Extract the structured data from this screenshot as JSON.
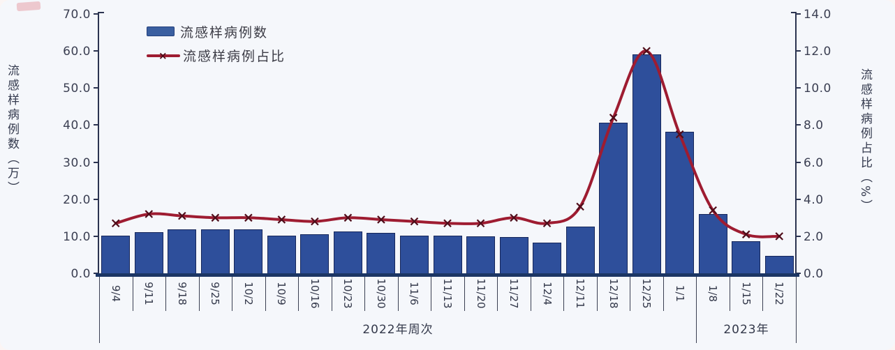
{
  "legend": {
    "series1_label": "流感样病例数",
    "series2_label": "流感样病例占比"
  },
  "left_axis": {
    "title": "流感样病例数（万）",
    "tick_labels": [
      "70.0",
      "60.0",
      "50.0",
      "40.0",
      "30.0",
      "20.0",
      "10.0",
      "0.0"
    ]
  },
  "right_axis": {
    "title": "流感样病例占比（%）",
    "tick_labels": [
      "14.0",
      "12.0",
      "10.0",
      "8.0",
      "6.0",
      "4.0",
      "2.0",
      "0.0"
    ]
  },
  "x_axis": {
    "group_2022_label": "2022年周次",
    "group_2023_label": "2023年"
  },
  "colors": {
    "bar_fill": "#2e4f9b",
    "bar_border": "#15265a",
    "line": "#9e1c31",
    "marker": "#4f0d1a",
    "axis": "#2b3350",
    "x_axis_band": "#1c3664",
    "text": "#3b3f52",
    "background": "#f5f7fb"
  },
  "chart_data": {
    "type": "bar",
    "combo": true,
    "categories": [
      "9/4",
      "9/11",
      "9/18",
      "9/25",
      "10/2",
      "10/9",
      "10/16",
      "10/23",
      "10/30",
      "11/6",
      "11/13",
      "11/20",
      "11/27",
      "12/4",
      "12/11",
      "12/18",
      "12/25",
      "1/1",
      "1/8",
      "1/15",
      "1/22"
    ],
    "series": [
      {
        "name": "流感样病例数",
        "type": "bar",
        "axis": "left",
        "values": [
          10.2,
          11.1,
          11.9,
          11.9,
          11.9,
          10.2,
          10.5,
          11.2,
          10.9,
          10.2,
          10.1,
          9.9,
          9.7,
          8.2,
          12.6,
          40.6,
          59.0,
          38.2,
          16.0,
          8.6,
          4.7
        ]
      },
      {
        "name": "流感样病例占比",
        "type": "line",
        "axis": "right",
        "values": [
          2.7,
          3.2,
          3.1,
          3.0,
          3.0,
          2.9,
          2.8,
          3.0,
          2.9,
          2.8,
          2.7,
          2.7,
          3.0,
          2.7,
          3.6,
          8.4,
          12.0,
          7.5,
          3.4,
          2.1,
          2.0
        ]
      }
    ],
    "title": "",
    "xlabel": "2022年周次 / 2023年",
    "ylabel_left": "流感样病例数（万）",
    "ylabel_right": "流感样病例占比（%）",
    "left_ylim": [
      0,
      70
    ],
    "right_ylim": [
      0,
      14
    ],
    "left_tick_step": 10,
    "right_tick_step": 2,
    "grid": false,
    "legend_position": "top-left",
    "group_2023_start_index": 18
  }
}
